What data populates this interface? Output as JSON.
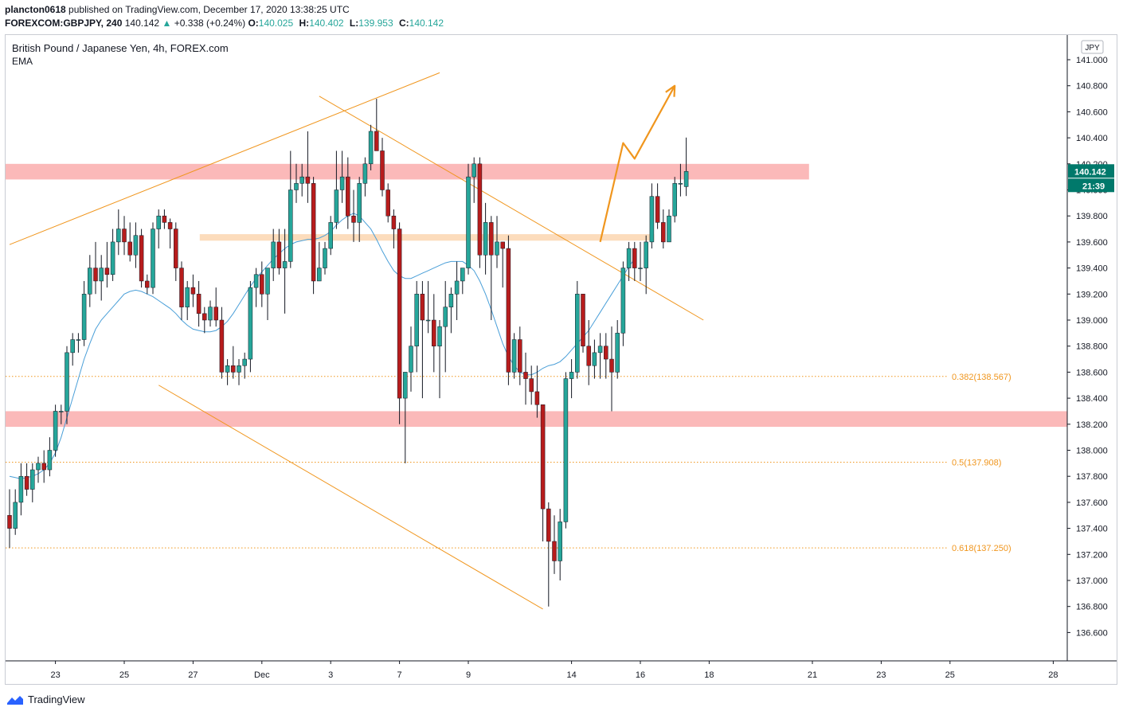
{
  "header": {
    "user": "plancton0618",
    "published_text": "published on TradingView.com, December 17, 2020 13:38:25 UTC",
    "symbol": "FOREXCOM:GBPJPY, 240",
    "last": "140.142",
    "change": "+0.338 (+0.24%)",
    "o_label": "O:",
    "o_value": "140.025",
    "h_label": "H:",
    "h_value": "140.402",
    "l_label": "L:",
    "l_value": "139.953",
    "c_label": "C:",
    "c_value": "140.142"
  },
  "legend": {
    "title": "British Pound / Japanese Yen, 4h, FOREX.com",
    "indicator": "EMA"
  },
  "footer": {
    "brand": "TradingView"
  },
  "colors": {
    "up": "#26a69a",
    "down": "#b71c1c",
    "wick": "#131722",
    "ema": "#4a9fd8",
    "drawing": "#f0961e",
    "zone_red": "#fbb9b9",
    "zone_orange": "#fcdcbc",
    "last_price_bg": "#00796b"
  },
  "chart_data": {
    "type": "candlestick",
    "currency": "JPY",
    "y_ticks": [
      "141.000",
      "140.800",
      "140.600",
      "140.400",
      "140.200",
      "140.000",
      "139.800",
      "139.600",
      "139.400",
      "139.200",
      "139.000",
      "138.800",
      "138.600",
      "138.400",
      "138.200",
      "138.000",
      "137.800",
      "137.600",
      "137.400",
      "137.200",
      "137.000",
      "136.800",
      "136.600"
    ],
    "x_ticks": [
      {
        "label": "23",
        "bar": 8
      },
      {
        "label": "25",
        "bar": 20
      },
      {
        "label": "27",
        "bar": 32
      },
      {
        "label": "Dec",
        "bar": 44
      },
      {
        "label": "3",
        "bar": 56
      },
      {
        "label": "7",
        "bar": 68
      },
      {
        "label": "9",
        "bar": 80
      },
      {
        "label": "14",
        "bar": 98
      },
      {
        "label": "16",
        "bar": 110
      },
      {
        "label": "18",
        "bar": 122
      },
      {
        "label": "21",
        "bar": 140
      },
      {
        "label": "23",
        "bar": 152
      },
      {
        "label": "25",
        "bar": 164
      },
      {
        "label": "28",
        "bar": 182
      }
    ],
    "last_price": "140.142",
    "countdown": "21:39",
    "candles_ohlc": [
      [
        137.5,
        137.7,
        137.25,
        137.4
      ],
      [
        137.4,
        137.7,
        137.35,
        137.6
      ],
      [
        137.6,
        137.9,
        137.5,
        137.8
      ],
      [
        137.8,
        137.9,
        137.65,
        137.7
      ],
      [
        137.7,
        137.9,
        137.6,
        137.85
      ],
      [
        137.85,
        137.95,
        137.75,
        137.9
      ],
      [
        137.9,
        138.0,
        137.75,
        137.85
      ],
      [
        137.85,
        138.1,
        137.8,
        138.0
      ],
      [
        138.0,
        138.35,
        137.95,
        138.3
      ],
      [
        138.3,
        138.35,
        138.2,
        138.3
      ],
      [
        138.3,
        138.8,
        138.2,
        138.75
      ],
      [
        138.75,
        138.9,
        138.65,
        138.85
      ],
      [
        138.85,
        138.9,
        138.75,
        138.85
      ],
      [
        138.85,
        139.3,
        138.8,
        139.2
      ],
      [
        139.2,
        139.5,
        139.1,
        139.4
      ],
      [
        139.4,
        139.6,
        139.2,
        139.3
      ],
      [
        139.3,
        139.5,
        139.15,
        139.4
      ],
      [
        139.4,
        139.6,
        139.25,
        139.35
      ],
      [
        139.35,
        139.7,
        139.3,
        139.6
      ],
      [
        139.6,
        139.85,
        139.5,
        139.7
      ],
      [
        139.7,
        139.8,
        139.5,
        139.6
      ],
      [
        139.6,
        139.75,
        139.45,
        139.5
      ],
      [
        139.5,
        139.75,
        139.4,
        139.65
      ],
      [
        139.65,
        139.7,
        139.25,
        139.3
      ],
      [
        139.3,
        139.35,
        139.2,
        139.25
      ],
      [
        139.25,
        139.75,
        139.2,
        139.7
      ],
      [
        139.7,
        139.85,
        139.55,
        139.8
      ],
      [
        139.8,
        139.85,
        139.7,
        139.75
      ],
      [
        139.75,
        139.78,
        139.55,
        139.7
      ],
      [
        139.7,
        139.75,
        139.3,
        139.4
      ],
      [
        139.4,
        139.45,
        139.0,
        139.1
      ],
      [
        139.1,
        139.3,
        139.0,
        139.25
      ],
      [
        139.25,
        139.35,
        139.1,
        139.2
      ],
      [
        139.2,
        139.3,
        138.95,
        139.05
      ],
      [
        139.05,
        139.1,
        138.9,
        139.0
      ],
      [
        139.0,
        139.15,
        138.95,
        139.1
      ],
      [
        139.1,
        139.25,
        138.95,
        139.0
      ],
      [
        139.0,
        139.1,
        138.55,
        138.6
      ],
      [
        138.6,
        138.7,
        138.5,
        138.65
      ],
      [
        138.65,
        138.8,
        138.55,
        138.6
      ],
      [
        138.6,
        138.7,
        138.5,
        138.65
      ],
      [
        138.65,
        138.75,
        138.55,
        138.7
      ],
      [
        138.7,
        139.3,
        138.6,
        139.25
      ],
      [
        139.25,
        139.4,
        139.1,
        139.35
      ],
      [
        139.35,
        139.45,
        139.1,
        139.2
      ],
      [
        139.2,
        139.4,
        139.0,
        139.4
      ],
      [
        139.4,
        139.7,
        139.3,
        139.6
      ],
      [
        139.6,
        139.7,
        139.35,
        139.4
      ],
      [
        139.4,
        139.7,
        139.05,
        139.45
      ],
      [
        139.45,
        140.3,
        139.4,
        140.0
      ],
      [
        140.0,
        140.2,
        139.9,
        140.05
      ],
      [
        140.05,
        140.2,
        139.95,
        140.1
      ],
      [
        140.1,
        140.45,
        139.9,
        140.05
      ],
      [
        140.05,
        140.1,
        139.2,
        139.3
      ],
      [
        139.3,
        139.6,
        139.3,
        139.4
      ],
      [
        139.4,
        139.6,
        139.35,
        139.55
      ],
      [
        139.55,
        139.8,
        139.5,
        139.75
      ],
      [
        139.75,
        140.3,
        139.7,
        140.0
      ],
      [
        140.0,
        140.3,
        139.9,
        140.1
      ],
      [
        140.1,
        140.25,
        139.7,
        139.8
      ],
      [
        139.8,
        140.0,
        139.6,
        139.75
      ],
      [
        139.75,
        140.1,
        139.6,
        140.05
      ],
      [
        140.05,
        140.25,
        139.95,
        140.2
      ],
      [
        140.2,
        140.5,
        140.15,
        140.45
      ],
      [
        140.45,
        140.7,
        140.35,
        140.3
      ],
      [
        140.3,
        140.4,
        139.95,
        140.0
      ],
      [
        140.0,
        140.05,
        139.75,
        139.8
      ],
      [
        139.8,
        139.85,
        139.55,
        139.7
      ],
      [
        139.7,
        139.75,
        138.2,
        138.4
      ],
      [
        138.4,
        138.6,
        137.9,
        138.6
      ],
      [
        138.6,
        138.95,
        138.45,
        138.8
      ],
      [
        138.8,
        139.3,
        138.6,
        139.2
      ],
      [
        139.2,
        139.3,
        138.4,
        139.0
      ],
      [
        139.0,
        139.3,
        138.9,
        139.0
      ],
      [
        139.0,
        139.2,
        138.6,
        138.8
      ],
      [
        138.8,
        139.0,
        138.4,
        138.95
      ],
      [
        138.95,
        139.3,
        138.6,
        139.1
      ],
      [
        139.1,
        139.25,
        138.9,
        139.2
      ],
      [
        139.2,
        139.45,
        139.0,
        139.3
      ],
      [
        139.3,
        139.4,
        139.2,
        139.4
      ],
      [
        139.4,
        140.2,
        139.35,
        140.1
      ],
      [
        140.1,
        140.25,
        139.9,
        140.2
      ],
      [
        140.2,
        140.25,
        139.4,
        139.5
      ],
      [
        139.5,
        139.9,
        139.35,
        139.75
      ],
      [
        139.75,
        139.8,
        139.0,
        139.5
      ],
      [
        139.5,
        139.8,
        139.4,
        139.6
      ],
      [
        139.6,
        139.6,
        139.25,
        139.55
      ],
      [
        139.55,
        139.65,
        138.5,
        138.6
      ],
      [
        138.6,
        138.9,
        138.55,
        138.85
      ],
      [
        138.85,
        138.95,
        138.5,
        138.6
      ],
      [
        138.6,
        138.75,
        138.35,
        138.55
      ],
      [
        138.55,
        138.65,
        138.35,
        138.45
      ],
      [
        138.45,
        138.65,
        138.25,
        138.35
      ],
      [
        138.35,
        137.9,
        137.3,
        137.55
      ],
      [
        137.55,
        137.6,
        136.8,
        137.3
      ],
      [
        137.3,
        137.5,
        137.05,
        137.15
      ],
      [
        137.15,
        137.55,
        137.0,
        137.45
      ],
      [
        137.45,
        138.6,
        137.4,
        138.55
      ],
      [
        138.55,
        138.7,
        138.4,
        138.6
      ],
      [
        138.6,
        139.3,
        138.55,
        139.2
      ],
      [
        139.2,
        139.2,
        138.75,
        138.8
      ],
      [
        138.8,
        139.0,
        138.5,
        138.65
      ],
      [
        138.65,
        138.85,
        138.55,
        138.75
      ],
      [
        138.75,
        138.9,
        138.55,
        138.8
      ],
      [
        138.8,
        138.9,
        138.55,
        138.7
      ],
      [
        138.7,
        138.95,
        138.3,
        138.6
      ],
      [
        138.6,
        139.0,
        138.55,
        138.9
      ],
      [
        138.9,
        139.45,
        138.8,
        139.4
      ],
      [
        139.4,
        139.6,
        139.3,
        139.55
      ],
      [
        139.55,
        139.6,
        139.3,
        139.4
      ],
      [
        139.4,
        139.6,
        139.3,
        139.4
      ],
      [
        139.4,
        139.65,
        139.2,
        139.6
      ],
      [
        139.6,
        140.05,
        139.55,
        139.95
      ],
      [
        139.95,
        140.05,
        139.7,
        139.75
      ],
      [
        139.75,
        139.85,
        139.55,
        139.6
      ],
      [
        139.6,
        139.85,
        139.6,
        139.8
      ],
      [
        139.8,
        140.1,
        139.75,
        140.05
      ],
      [
        140.05,
        140.2,
        139.95,
        140.05
      ],
      [
        140.025,
        140.402,
        139.953,
        140.142
      ]
    ],
    "ema_start_bar": 0,
    "ema_values": [
      137.8,
      137.79,
      137.78,
      137.79,
      137.8,
      137.82,
      137.85,
      137.9,
      137.98,
      138.1,
      138.25,
      138.4,
      138.55,
      138.7,
      138.82,
      138.93,
      139.0,
      139.05,
      139.1,
      139.15,
      139.2,
      139.22,
      139.23,
      139.22,
      139.2,
      139.18,
      139.15,
      139.12,
      139.09,
      139.05,
      139.0,
      138.96,
      138.93,
      138.92,
      138.91,
      138.91,
      138.92,
      138.95,
      138.99,
      139.05,
      139.12,
      139.19,
      139.26,
      139.32,
      139.37,
      139.42,
      139.47,
      139.51,
      139.55,
      139.58,
      139.6,
      139.61,
      139.62,
      139.62,
      139.63,
      139.65,
      139.68,
      139.73,
      139.77,
      139.8,
      139.82,
      139.8,
      139.75,
      139.7,
      139.62,
      139.53,
      139.45,
      139.38,
      139.34,
      139.32,
      139.32,
      139.34,
      139.36,
      139.38,
      139.4,
      139.42,
      139.44,
      139.45,
      139.45,
      139.45,
      139.42,
      139.38,
      139.3,
      139.2,
      139.08,
      138.95,
      138.82,
      138.72,
      138.65,
      138.6,
      138.58,
      138.58,
      138.6,
      138.63,
      138.65,
      138.66,
      138.68,
      138.72,
      138.77,
      138.82,
      138.87,
      138.92,
      138.99,
      139.06,
      139.13,
      139.2,
      139.27,
      139.34,
      139.41,
      139.47
    ],
    "zones": [
      {
        "from_bar": 0,
        "to_bar": 139,
        "low": 140.08,
        "high": 140.2,
        "color": "red"
      },
      {
        "from_bar": 0,
        "to_bar": "end",
        "low": 138.18,
        "high": 138.3,
        "color": "red"
      },
      {
        "from_bar": 34,
        "to_bar": 112,
        "low": 139.61,
        "high": 139.66,
        "color": "orange"
      }
    ],
    "trendlines": [
      {
        "from": [
          0,
          139.58
        ],
        "to": [
          75,
          140.9
        ]
      },
      {
        "from": [
          54,
          140.72
        ],
        "to": [
          121,
          139.0
        ]
      },
      {
        "from": [
          26,
          138.5
        ],
        "to": [
          93,
          136.78
        ]
      }
    ],
    "projection": [
      [
        103,
        139.6
      ],
      [
        107,
        140.36
      ],
      [
        109,
        140.24
      ],
      [
        116,
        140.8
      ]
    ],
    "fib_levels": [
      {
        "label": "0.382(138.567)",
        "price": 138.567
      },
      {
        "label": "0.5(137.908)",
        "price": 137.908
      },
      {
        "label": "0.618(137.250)",
        "price": 137.25
      }
    ]
  }
}
